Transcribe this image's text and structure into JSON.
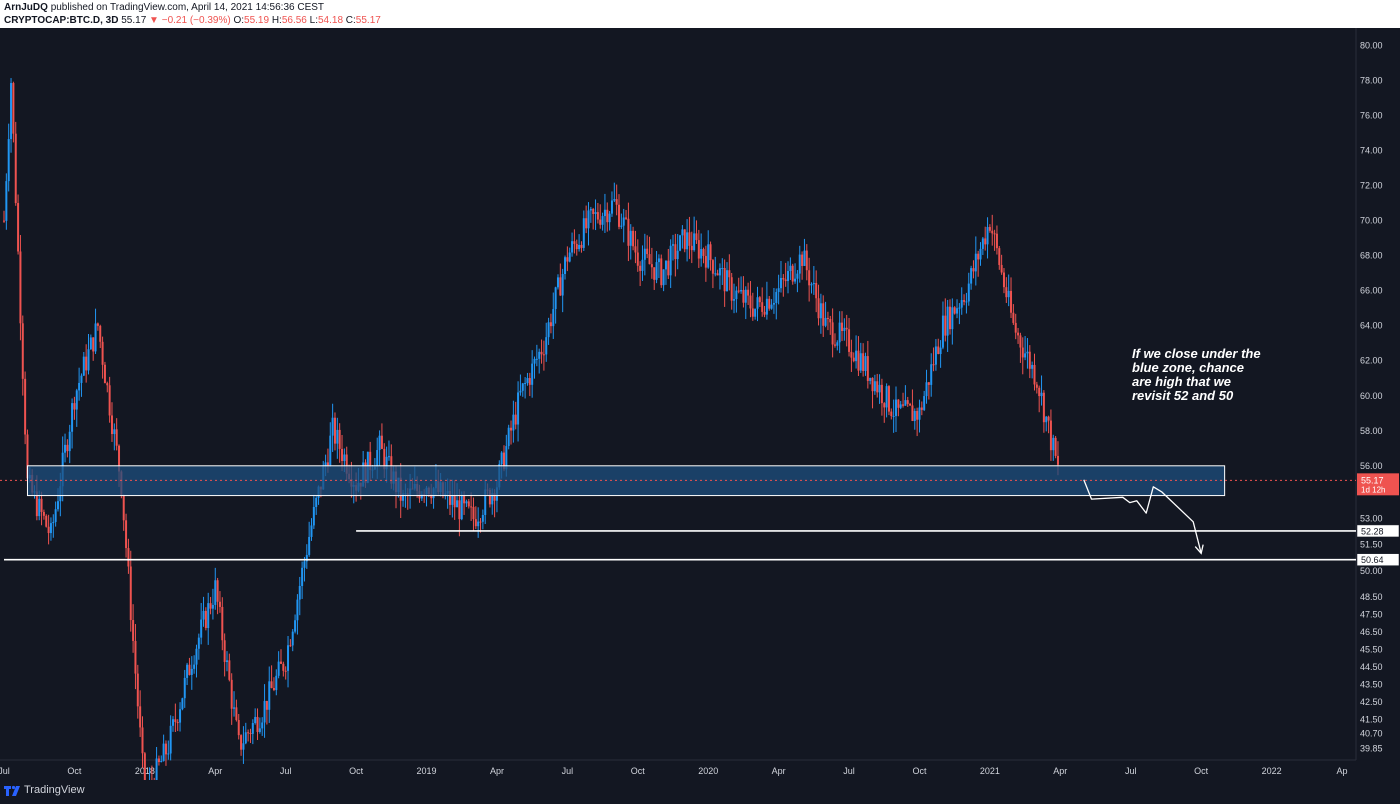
{
  "header": {
    "publisher": "ArnJuDQ",
    "published_text": "published on TradingView.com, April 14, 2021 14:56:36 CEST",
    "symbol": "CRYPTOCAP:BTC.D, 3D",
    "last": "55.17",
    "change": "−0.21 (−0.39%)",
    "o_label": "O:",
    "o": "55.19",
    "h_label": "H:",
    "h": "56.56",
    "l_label": "L:",
    "l": "54.18",
    "c_label": "C:",
    "c": "55.17"
  },
  "footer": {
    "brand": "TradingView"
  },
  "colors": {
    "background": "#131722",
    "up": "#2196f3",
    "down": "#ef5350",
    "zone": "#1e4f7f",
    "text": "#d1d4dc"
  },
  "chart_data": {
    "type": "candlestick",
    "title": "",
    "ylim": [
      39.2,
      81.0
    ],
    "y_ticks": [
      "80.00",
      "78.00",
      "76.00",
      "74.00",
      "72.00",
      "70.00",
      "68.00",
      "66.00",
      "64.00",
      "62.00",
      "60.00",
      "58.00",
      "56.00",
      "53.00",
      "51.50",
      "50.00",
      "48.50",
      "47.50",
      "46.50",
      "45.50",
      "44.50",
      "43.50",
      "42.50",
      "41.50",
      "40.70",
      "39.85"
    ],
    "x_ticks": [
      "Jul",
      "Oct",
      "2018",
      "Apr",
      "Jul",
      "Oct",
      "2019",
      "Apr",
      "Jul",
      "Oct",
      "2020",
      "Apr",
      "Jul",
      "Oct",
      "2021",
      "Apr",
      "Jul",
      "Oct",
      "2022",
      "Ap"
    ],
    "x_range": [
      "2017-07",
      "2022-04"
    ],
    "price_path": [
      [
        "2017-07",
        70
      ],
      [
        "2017-07",
        78
      ],
      [
        "2017-08",
        55
      ],
      [
        "2017-09",
        52
      ],
      [
        "2017-10",
        60
      ],
      [
        "2017-11",
        64
      ],
      [
        "2017-12",
        55
      ],
      [
        "2018-01",
        37
      ],
      [
        "2018-02",
        40
      ],
      [
        "2018-03",
        45
      ],
      [
        "2018-04",
        49
      ],
      [
        "2018-05",
        40
      ],
      [
        "2018-06",
        42
      ],
      [
        "2018-07",
        45
      ],
      [
        "2018-08",
        52
      ],
      [
        "2018-09",
        58
      ],
      [
        "2018-10",
        55
      ],
      [
        "2018-11",
        57
      ],
      [
        "2018-12",
        54
      ],
      [
        "2019-01",
        55
      ],
      [
        "2019-02",
        54
      ],
      [
        "2019-03",
        53
      ],
      [
        "2019-04",
        55
      ],
      [
        "2019-05",
        60
      ],
      [
        "2019-06",
        63
      ],
      [
        "2019-07",
        68
      ],
      [
        "2019-08",
        70
      ],
      [
        "2019-09",
        71
      ],
      [
        "2019-10",
        68
      ],
      [
        "2019-11",
        67
      ],
      [
        "2019-12",
        69
      ],
      [
        "2020-01",
        68
      ],
      [
        "2020-02",
        66
      ],
      [
        "2020-03",
        65
      ],
      [
        "2020-04",
        66
      ],
      [
        "2020-05",
        68
      ],
      [
        "2020-06",
        64
      ],
      [
        "2020-07",
        63
      ],
      [
        "2020-08",
        61
      ],
      [
        "2020-09",
        59
      ],
      [
        "2020-10",
        59
      ],
      [
        "2020-11",
        64
      ],
      [
        "2020-12",
        66
      ],
      [
        "2021-01",
        70
      ],
      [
        "2021-02",
        64
      ],
      [
        "2021-03",
        61
      ],
      [
        "2021-04",
        55.17
      ]
    ],
    "zone": {
      "top": 56.0,
      "bottom": 54.3,
      "from": "2017-08",
      "to": "2021-11"
    },
    "levels": [
      {
        "value": 52.28,
        "label": "52.28",
        "from": "2018-10"
      },
      {
        "value": 50.64,
        "label": "50.64",
        "from": "2017-07"
      }
    ],
    "current_price": {
      "value": 55.17,
      "label": "55.17",
      "countdown": "1d 12h"
    },
    "annotation": {
      "lines": [
        "If we close under the",
        "blue zone, chance",
        "are high that we",
        "revisit 52 and 50"
      ]
    },
    "projection_path": [
      [
        "2021-05",
        55.2
      ],
      [
        "2021-05",
        54.1
      ],
      [
        "2021-06",
        54.2
      ],
      [
        "2021-06",
        53.9
      ],
      [
        "2021-06",
        54.0
      ],
      [
        "2021-07",
        53.3
      ],
      [
        "2021-07",
        54.8
      ],
      [
        "2021-08",
        54.5
      ],
      [
        "2021-09",
        52.8
      ],
      [
        "2021-10",
        51.0
      ]
    ]
  }
}
